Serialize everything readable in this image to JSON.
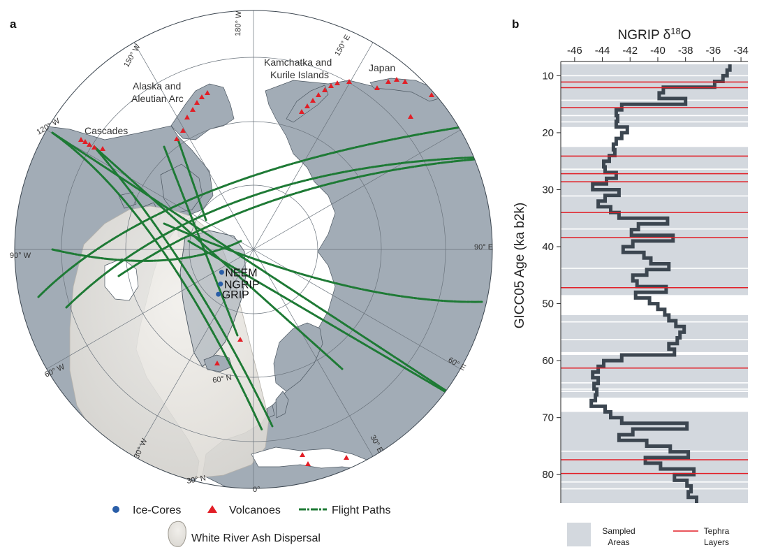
{
  "panels": {
    "a": "a",
    "b": "b"
  },
  "map": {
    "regions": {
      "cascades": "Cascades",
      "alaska_l1": "Alaska and",
      "alaska_l2": "Aleutian Arc",
      "kamchatka_l1": "Kamchatka and",
      "kamchatka_l2": "Kurile Islands",
      "japan": "Japan"
    },
    "graticule": {
      "lon_180w": "180° W",
      "lon_150w": "150° W",
      "lon_150e": "150° E",
      "lon_120w": "120° W",
      "lon_90w": "90° W",
      "lon_90e": "90° E",
      "lon_60w": "60° W",
      "lon_60e": "60° E",
      "lon_30w": "30° W",
      "lon_30e": "30° E",
      "lon_0": "0°",
      "lat_60n": "60° N",
      "lat_30n": "30° N"
    },
    "ice_cores": [
      {
        "name": "NEEM",
        "lon_deg": -51.1,
        "lat_deg": 77.5
      },
      {
        "name": "NGRIP",
        "lon_deg": -42.3,
        "lat_deg": 75.1
      },
      {
        "name": "GRIP",
        "lon_deg": -37.6,
        "lat_deg": 72.6
      }
    ],
    "colors": {
      "land": "#a2acb6",
      "ocean": "#ffffff",
      "ash": "#e5e3de",
      "flight": "#1e7a35",
      "volcano": "#e21e26",
      "ice_core": "#2a5ea8",
      "coast": "#4b5660"
    }
  },
  "legend": {
    "ice_cores": "Ice-Cores",
    "volcanoes": "Volcanoes",
    "flight_paths": "Flight Paths",
    "ash": "White River Ash Dispersal"
  },
  "chart_data": {
    "type": "line",
    "title_pre": "NGRIP δ",
    "title_sup": "18",
    "title_post": "O",
    "ylabel": "GICC05 Age (ka b2k)",
    "xlim": [
      -47,
      -33.5
    ],
    "ylim": [
      85,
      7.5
    ],
    "x_ticks": [
      -46,
      -44,
      -42,
      -40,
      -38,
      -36,
      -34
    ],
    "y_ticks": [
      10,
      20,
      30,
      40,
      50,
      60,
      70,
      80
    ],
    "series": [
      {
        "age_ka": [
          8.5,
          9.5,
          10.5,
          11.5,
          12.5,
          13.5,
          14.5,
          15.5,
          16.5,
          17.5,
          18.5,
          19.5,
          20.5,
          21.5,
          22.5,
          23.5,
          24.5,
          25.5,
          26.5,
          27.5,
          28.5,
          29.5,
          30.5,
          31.5,
          32.5,
          33.5,
          34.5,
          35.5,
          36.5,
          37.5,
          38.5,
          39.5,
          40.5,
          41.5,
          42.5,
          43.5,
          44.5,
          45.5,
          46.5,
          47.5,
          48.5,
          49.5,
          50.5,
          51.5,
          52.5,
          53.5,
          54.5,
          55.5,
          56.5,
          57.5,
          58.5,
          59.5,
          60.5,
          61.5,
          62.5,
          63.5,
          64.5,
          65.5,
          66.5,
          67.5,
          68.5,
          69.5,
          70.5,
          71.5,
          72.5,
          73.5,
          74.5,
          75.5,
          76.5,
          77.5,
          78.5,
          79.5,
          80.5,
          81.5,
          82.5,
          83.5,
          84.5
        ],
        "d18o": [
          -34.8,
          -35.0,
          -35.3,
          -35.9,
          -39.6,
          -39.9,
          -38.0,
          -42.6,
          -43.0,
          -42.9,
          -43.0,
          -42.2,
          -42.6,
          -43.0,
          -43.2,
          -43.1,
          -43.5,
          -43.9,
          -43.8,
          -43.0,
          -43.7,
          -44.7,
          -42.8,
          -43.8,
          -44.3,
          -43.4,
          -42.8,
          -39.3,
          -41.4,
          -41.9,
          -38.9,
          -41.8,
          -42.5,
          -41.0,
          -40.5,
          -39.2,
          -40.8,
          -41.8,
          -41.5,
          -39.4,
          -41.6,
          -40.6,
          -40.0,
          -39.5,
          -39.2,
          -38.7,
          -38.1,
          -38.4,
          -38.6,
          -39.2,
          -38.8,
          -42.6,
          -43.9,
          -44.3,
          -44.7,
          -44.3,
          -44.6,
          -44.4,
          -44.5,
          -44.8,
          -43.8,
          -43.4,
          -42.6,
          -37.9,
          -41.8,
          -42.8,
          -40.8,
          -39.1,
          -37.8,
          -40.9,
          -39.8,
          -37.4,
          -38.8,
          -37.9,
          -37.6,
          -37.8,
          -37.2
        ]
      }
    ],
    "tephra_layers_ka": [
      11.1,
      12.1,
      15.6,
      24.1,
      27.2,
      28.6,
      34.0,
      38.4,
      47.2,
      61.3,
      77.4,
      79.8
    ],
    "sampled_areas_ka": [
      [
        8,
        19
      ],
      [
        22.5,
        48.5
      ],
      [
        52,
        58.5
      ],
      [
        59,
        66.5
      ],
      [
        69,
        85
      ]
    ],
    "legend": {
      "sampled_l1": "Sampled",
      "sampled_l2": "Areas",
      "tephra_l1": "Tephra",
      "tephra_l2": "Layers"
    },
    "colors": {
      "sampled": "#d3d8de",
      "curve": "#3c4650",
      "tephra": "#e21e26"
    }
  }
}
